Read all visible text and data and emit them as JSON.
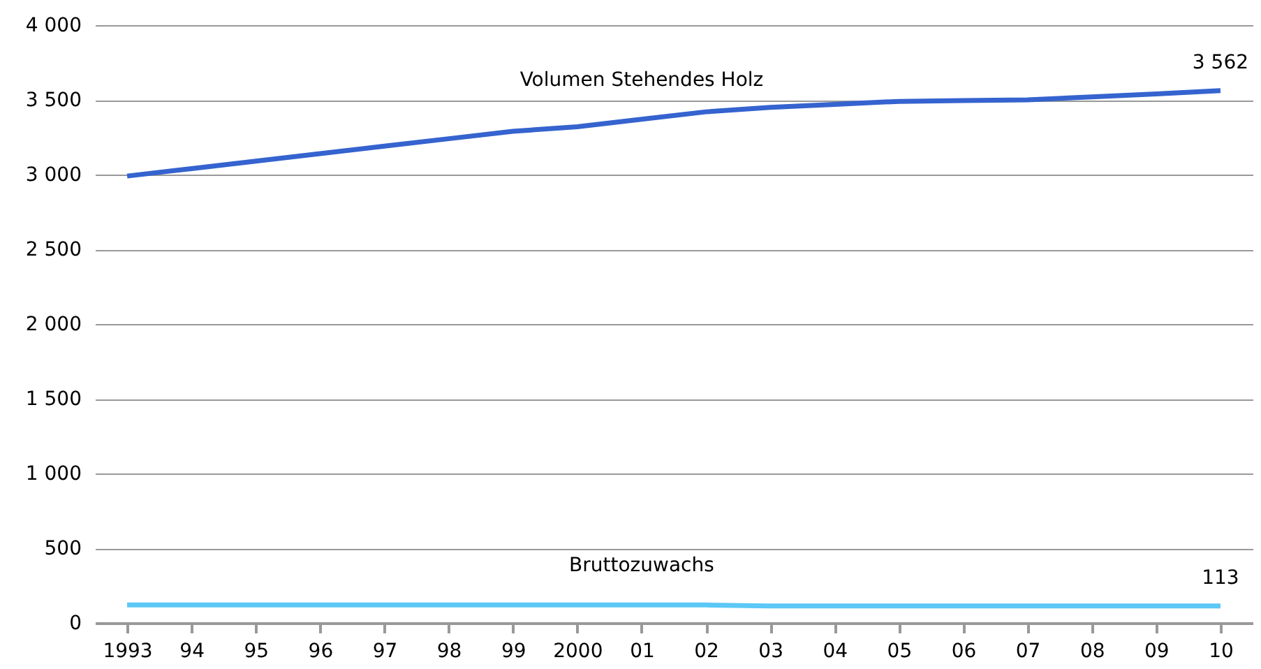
{
  "chart_data": {
    "type": "line",
    "categories": [
      "1993",
      "94",
      "95",
      "96",
      "97",
      "98",
      "99",
      "2000",
      "01",
      "02",
      "03",
      "04",
      "05",
      "06",
      "07",
      "08",
      "09",
      "10"
    ],
    "series": [
      {
        "name": "Volumen Stehendes Holz",
        "color": "#3563cf",
        "values": [
          2990,
          3040,
          3090,
          3140,
          3190,
          3240,
          3290,
          3320,
          3370,
          3420,
          3450,
          3470,
          3490,
          3495,
          3500,
          3520,
          3540,
          3562
        ],
        "value_labels": [
          null,
          null,
          null,
          null,
          null,
          null,
          null,
          null,
          null,
          null,
          null,
          null,
          null,
          null,
          null,
          null,
          null,
          "3 562"
        ]
      },
      {
        "name": "Bruttozuwachs",
        "color": "#5bc8f5",
        "values": [
          120,
          120,
          120,
          120,
          120,
          120,
          120,
          120,
          120,
          120,
          113,
          113,
          113,
          113,
          113,
          113,
          113,
          113
        ],
        "value_labels": [
          null,
          null,
          null,
          null,
          null,
          null,
          null,
          null,
          null,
          null,
          null,
          null,
          null,
          null,
          null,
          null,
          null,
          "113"
        ]
      }
    ],
    "ylim": [
      0,
      4000
    ],
    "yticks": [
      0,
      500,
      {
        "value": 1000,
        "label": "1 000"
      },
      {
        "value": 1500,
        "label": "1 500"
      },
      {
        "value": 2000,
        "label": "2 000"
      },
      {
        "value": 2500,
        "label": "2 500"
      },
      {
        "value": 3000,
        "label": "3 000"
      },
      {
        "value": 3500,
        "label": "3 500"
      },
      {
        "value": 4000,
        "label": "4 000"
      }
    ],
    "grid": "y",
    "marker": "none",
    "line_style": "solid"
  }
}
